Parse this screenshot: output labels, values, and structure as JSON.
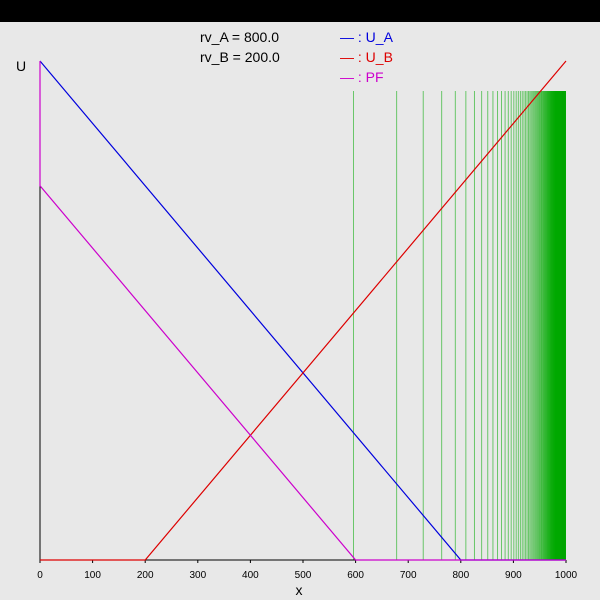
{
  "chart_data": {
    "type": "line",
    "ylabel": "U",
    "xlabel": "x",
    "xlim": [
      0,
      1000
    ],
    "xticks": [
      0,
      100,
      200,
      300,
      400,
      500,
      600,
      700,
      800,
      900,
      1000
    ],
    "grid": false,
    "legend_position": "top",
    "params": [
      {
        "label": "rv_A = 800.0"
      },
      {
        "label": "rv_B = 200.0"
      }
    ],
    "series": [
      {
        "name": "U_A",
        "legend_label": "— : U_A",
        "color": "#0000dd",
        "x": [
          0,
          800,
          1000
        ],
        "y": [
          1.0,
          0.0,
          0.0
        ]
      },
      {
        "name": "U_B",
        "legend_label": "— : U_B",
        "color": "#dd0000",
        "x": [
          0,
          200,
          1000
        ],
        "y": [
          0.0,
          0.0,
          1.0
        ]
      },
      {
        "name": "PF",
        "legend_label": "— : PF",
        "color": "#cc00cc",
        "x": [
          0,
          0,
          600,
          1000
        ],
        "y": [
          1.0,
          0.75,
          0.0,
          0.0
        ]
      }
    ],
    "vlines": {
      "color": "#00aa00",
      "max_y": 0.94,
      "x": [
        596.0,
        678.0,
        728.6,
        763.6,
        789.6,
        809.6,
        826.0,
        839.6,
        851.2,
        861.1,
        869.8,
        877.4,
        884.2,
        890.3,
        895.8,
        900.8,
        905.3,
        909.4,
        913.3,
        916.8,
        920.1,
        923.2,
        926.0,
        928.7,
        931.2,
        933.5,
        935.7,
        937.8,
        939.7,
        941.6,
        943.3,
        945.0,
        946.6,
        948.1,
        949.5,
        950.9,
        952.2,
        953.4,
        954.6,
        955.8,
        956.9,
        957.9,
        958.9,
        959.9,
        960.8,
        961.7,
        962.6,
        963.4,
        964.2,
        965.0,
        965.7,
        966.4,
        967.1,
        967.8,
        968.4,
        969.1,
        969.7,
        970.3,
        970.8,
        971.4,
        971.9,
        972.4,
        972.9,
        973.4,
        973.9,
        974.4,
        974.8,
        975.3,
        975.7,
        976.1,
        976.5,
        976.9,
        977.3,
        977.7,
        978.0,
        978.4,
        978.7,
        979.1,
        979.4,
        979.7,
        980.0,
        980.3,
        980.6,
        980.9,
        981.2,
        981.5,
        981.8,
        982.0,
        982.3,
        982.6,
        982.8,
        983.1,
        983.3,
        983.5,
        983.8,
        984.0,
        984.2,
        984.4,
        984.6,
        984.8,
        985.0,
        985.2,
        985.4,
        985.6,
        985.8,
        986.0,
        986.2,
        986.4,
        986.5,
        986.7,
        986.9,
        987.0,
        987.2,
        987.4,
        987.5,
        987.7,
        987.8,
        988.0,
        988.1,
        988.3,
        988.4,
        988.5,
        988.7,
        988.8,
        988.9,
        989.1,
        989.2,
        989.3,
        989.4,
        989.6,
        989.7,
        989.8,
        989.9,
        990.0,
        990.1,
        990.2,
        990.3,
        990.4,
        990.5,
        990.6,
        990.7,
        990.8,
        990.9,
        991.0,
        991.1,
        991.2,
        991.3,
        991.4,
        991.5,
        991.6,
        991.7,
        991.8,
        991.8,
        991.9,
        992.0,
        992.1,
        992.2,
        992.2,
        992.3,
        992.4,
        992.5,
        992.5,
        992.6,
        992.7,
        992.7,
        992.8,
        992.9,
        992.9,
        993.0,
        993.1,
        993.1,
        993.2,
        993.3,
        993.3,
        993.4,
        993.4,
        993.5,
        993.6,
        993.6,
        993.7,
        993.7,
        993.8,
        993.8,
        993.9,
        993.9,
        994.0,
        994.0,
        994.1,
        994.1,
        994.2,
        994.2,
        994.3,
        994.3,
        994.4,
        994.4,
        994.5,
        994.5,
        994.6,
        994.6,
        994.7,
        994.7,
        994.7,
        994.8,
        994.8,
        994.9,
        994.9,
        995.0,
        995.0,
        995.0,
        995.1,
        995.1,
        995.2,
        995.2,
        995.2,
        995.3,
        995.3,
        995.3,
        995.4,
        995.4,
        995.4,
        995.5,
        995.5,
        995.5,
        995.6,
        995.6,
        995.6,
        995.7,
        995.7,
        995.7,
        995.8,
        995.8,
        995.8,
        995.9,
        995.9,
        995.9,
        995.9,
        996.0,
        996.0,
        996.0,
        996.1,
        996.1,
        996.1,
        996.1,
        996.2,
        996.2,
        996.2,
        996.2,
        996.3,
        996.3,
        996.3,
        996.3,
        996.4,
        996.4,
        996.4,
        996.4,
        996.5,
        996.5,
        996.5,
        996.5,
        996.5,
        996.6,
        996.6,
        996.6,
        996.6,
        996.7,
        996.7,
        996.7,
        996.7,
        996.7,
        996.8,
        996.8,
        996.8,
        996.8,
        996.8,
        996.8,
        996.9,
        996.9,
        996.9,
        996.9,
        996.9,
        997.0,
        997.0,
        997.0,
        997.0,
        997.0,
        997.0,
        997.1,
        997.1,
        997.1,
        997.1,
        997.1,
        997.1,
        997.2,
        997.2,
        997.2,
        997.2,
        997.2,
        997.2,
        997.2,
        997.3,
        997.3,
        997.3,
        997.3,
        997.3,
        997.3,
        997.3,
        997.4,
        997.4,
        997.4,
        997.4,
        997.4,
        997.4,
        997.4,
        997.4,
        997.5,
        997.5,
        997.5,
        997.5,
        997.5,
        997.5,
        997.5,
        997.5,
        997.6,
        997.6,
        997.6,
        997.6,
        997.6,
        997.6,
        997.6,
        997.6,
        997.6,
        997.7,
        997.7,
        997.7,
        997.7,
        997.7,
        997.7,
        997.7,
        997.7,
        997.7,
        997.7,
        997.8,
        997.8,
        997.8,
        997.8,
        997.8,
        997.8,
        997.8,
        997.8,
        997.8,
        997.8,
        997.8,
        997.9,
        997.9,
        997.9,
        997.9,
        997.9,
        997.9,
        997.9,
        997.9,
        997.9,
        997.9,
        997.9,
        997.9,
        998.0,
        998.0,
        998.0,
        998.0,
        998.0,
        998.0,
        998.0,
        998.0,
        998.0,
        998.0,
        998.0,
        998.0,
        998.0,
        998.0,
        998.1,
        998.1,
        998.1,
        998.1,
        998.1,
        998.1,
        998.1,
        998.1,
        998.1,
        998.1,
        998.1,
        998.1,
        998.1,
        998.1,
        998.1,
        998.2,
        998.2,
        998.2,
        998.2,
        998.2,
        998.2,
        998.2,
        998.2,
        998.2,
        998.2,
        998.2,
        998.2,
        998.2,
        998.2,
        998.2,
        998.2,
        998.2,
        998.2,
        998.3,
        998.3,
        998.3,
        998.3,
        998.3,
        998.3,
        998.3,
        998.3,
        998.3,
        998.3,
        998.3,
        998.3,
        998.3,
        998.3,
        998.3,
        998.3,
        998.3,
        998.3,
        998.3,
        998.3,
        998.4,
        998.4,
        998.4,
        998.4,
        998.4,
        998.4,
        998.4,
        998.4,
        998.4,
        998.4,
        998.4,
        998.4,
        998.4,
        998.4,
        998.4,
        998.4,
        998.4,
        998.4,
        998.4,
        998.4,
        998.4,
        998.4,
        998.4,
        998.4,
        998.4,
        998.4,
        998.5,
        998.5,
        998.5,
        998.5,
        998.5,
        998.5,
        998.5,
        998.5,
        998.5,
        998.5,
        998.5,
        998.5,
        998.5,
        998.5,
        998.5,
        998.5,
        998.5,
        998.5,
        998.5,
        998.5,
        998.5,
        998.5,
        998.5,
        998.5,
        998.5,
        998.5,
        998.5,
        998.5,
        998.5,
        998.5,
        998.5,
        998.5,
        998.5,
        998.6,
        998.6,
        998.6,
        998.6,
        998.6,
        998.6,
        998.6,
        998.6,
        998.6,
        998.6,
        998.6,
        998.6,
        998.6,
        998.6,
        998.6,
        998.6,
        998.6,
        998.6,
        998.6,
        998.6,
        998.6,
        998.6,
        998.6,
        998.6,
        998.6,
        998.6,
        998.6,
        998.6,
        998.6,
        998.6,
        998.6,
        998.6,
        998.6,
        998.6,
        998.6,
        998.6,
        998.6,
        998.6,
        998.6,
        998.6,
        998.6,
        998.6,
        998.6,
        998.7
      ]
    }
  }
}
